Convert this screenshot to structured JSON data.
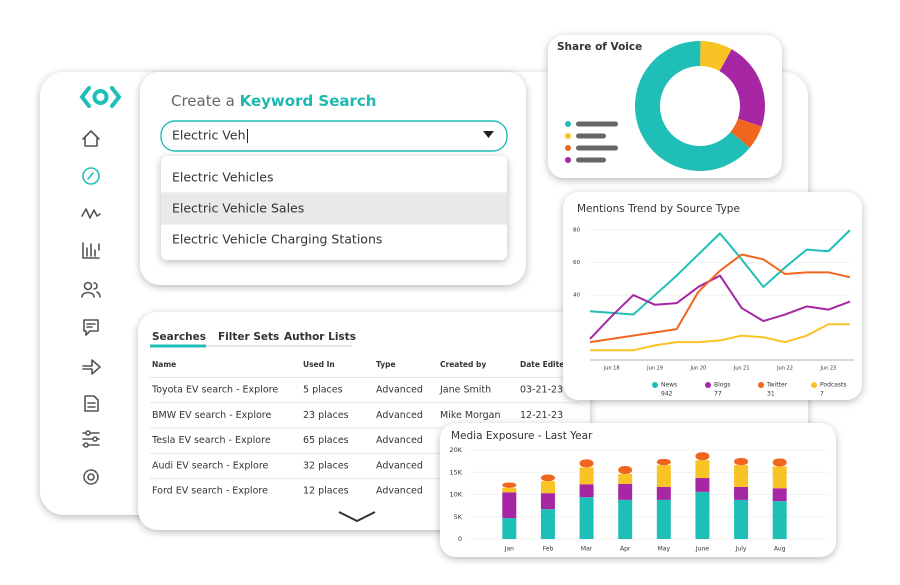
{
  "search": {
    "title_prefix": "Create a",
    "title_keyword": "Keyword Search",
    "input": "Electric Veh",
    "options": [
      "Electric Vehicles",
      "Electric Vehicle Sales",
      "Electric Vehicle Charging Stations"
    ]
  },
  "table": {
    "tabs": [
      "Searches",
      "Filter Sets",
      "Author Lists"
    ],
    "columns": [
      "Name",
      "Used In",
      "Type",
      "Created by",
      "Date Edited"
    ],
    "rows": [
      [
        "Toyota EV search - Explore",
        "5 places",
        "Advanced",
        "Jane Smith",
        "03-21-23"
      ],
      [
        "BMW EV search - Explore",
        "23 places",
        "Advanced",
        "Mike Morgan",
        "12-21-23"
      ],
      [
        "Tesla EV search - Explore",
        "65 places",
        "Advanced"
      ],
      [
        "Audi EV search - Explore",
        "32 places",
        "Advanced"
      ],
      [
        "Ford EV search - Explore",
        "12 places",
        "Advanced"
      ]
    ]
  },
  "chart_data": [
    {
      "type": "pie",
      "title": "Share of Voice",
      "values": [
        64,
        8,
        22,
        6
      ],
      "colors": [
        "#1fbfb8",
        "#f7c325",
        "#a626a4",
        "#f0661f"
      ],
      "donut": true
    },
    {
      "type": "line",
      "title": "Mentions Trend by Source Type",
      "categories": [
        null,
        "Jun 18",
        null,
        "Jun 19",
        null,
        "Jun 20",
        null,
        "Jun 21",
        null,
        "Jun 22",
        null,
        "Jun 23",
        null
      ],
      "ylim": [
        0,
        85
      ],
      "yticks": [
        40,
        60,
        80
      ],
      "grid": true,
      "series": [
        {
          "name": "News",
          "total": 942,
          "color": "#1fbfb8",
          "values": [
            30,
            29,
            28,
            40,
            52,
            65,
            78,
            62,
            45,
            57,
            68,
            67,
            80
          ]
        },
        {
          "name": "Blogs",
          "total": 77,
          "color": "#a626a4",
          "values": [
            13,
            27,
            40,
            34,
            35,
            45,
            52,
            32,
            24,
            28,
            33,
            31,
            36
          ]
        },
        {
          "name": "Twitter",
          "total": 31,
          "color": "#f0661f",
          "values": [
            11,
            13,
            15,
            17,
            19,
            42,
            55,
            65,
            62,
            53,
            54,
            54,
            51
          ]
        },
        {
          "name": "Podcasts",
          "total": 7,
          "color": "#f7c325",
          "values": [
            6,
            6,
            6,
            9,
            11,
            11,
            12,
            15,
            14,
            11,
            15,
            22,
            22
          ]
        }
      ]
    },
    {
      "type": "stacked_bar",
      "title": "Media Exposure - Last Year",
      "categories": [
        "Jan",
        "Feb",
        "Mar",
        "Apr",
        "May",
        "June",
        "July",
        "Aug"
      ],
      "ylim": [
        0,
        20000
      ],
      "yticks": [
        0,
        {
          "value": 5000,
          "label": "5K"
        },
        {
          "value": 10000,
          "label": "10K"
        },
        {
          "value": 15000,
          "label": "15K"
        },
        {
          "value": 20000,
          "label": "20K"
        }
      ],
      "grid": true,
      "series": [
        {
          "color": "#1fbfb8",
          "values": [
            4700,
            6700,
            9400,
            8800,
            8800,
            10600,
            8800,
            8500
          ]
        },
        {
          "color": "#a626a4",
          "values": [
            5800,
            3600,
            2900,
            3600,
            2900,
            3100,
            2900,
            2900
          ]
        },
        {
          "color": "#f7c325",
          "values": [
            1000,
            2700,
            3800,
            2200,
            4900,
            4000,
            4900,
            4900
          ]
        },
        {
          "color": "#f0661f",
          "values": [
            1200,
            1500,
            1800,
            1800,
            1400,
            1800,
            1600,
            1800
          ]
        }
      ]
    }
  ]
}
